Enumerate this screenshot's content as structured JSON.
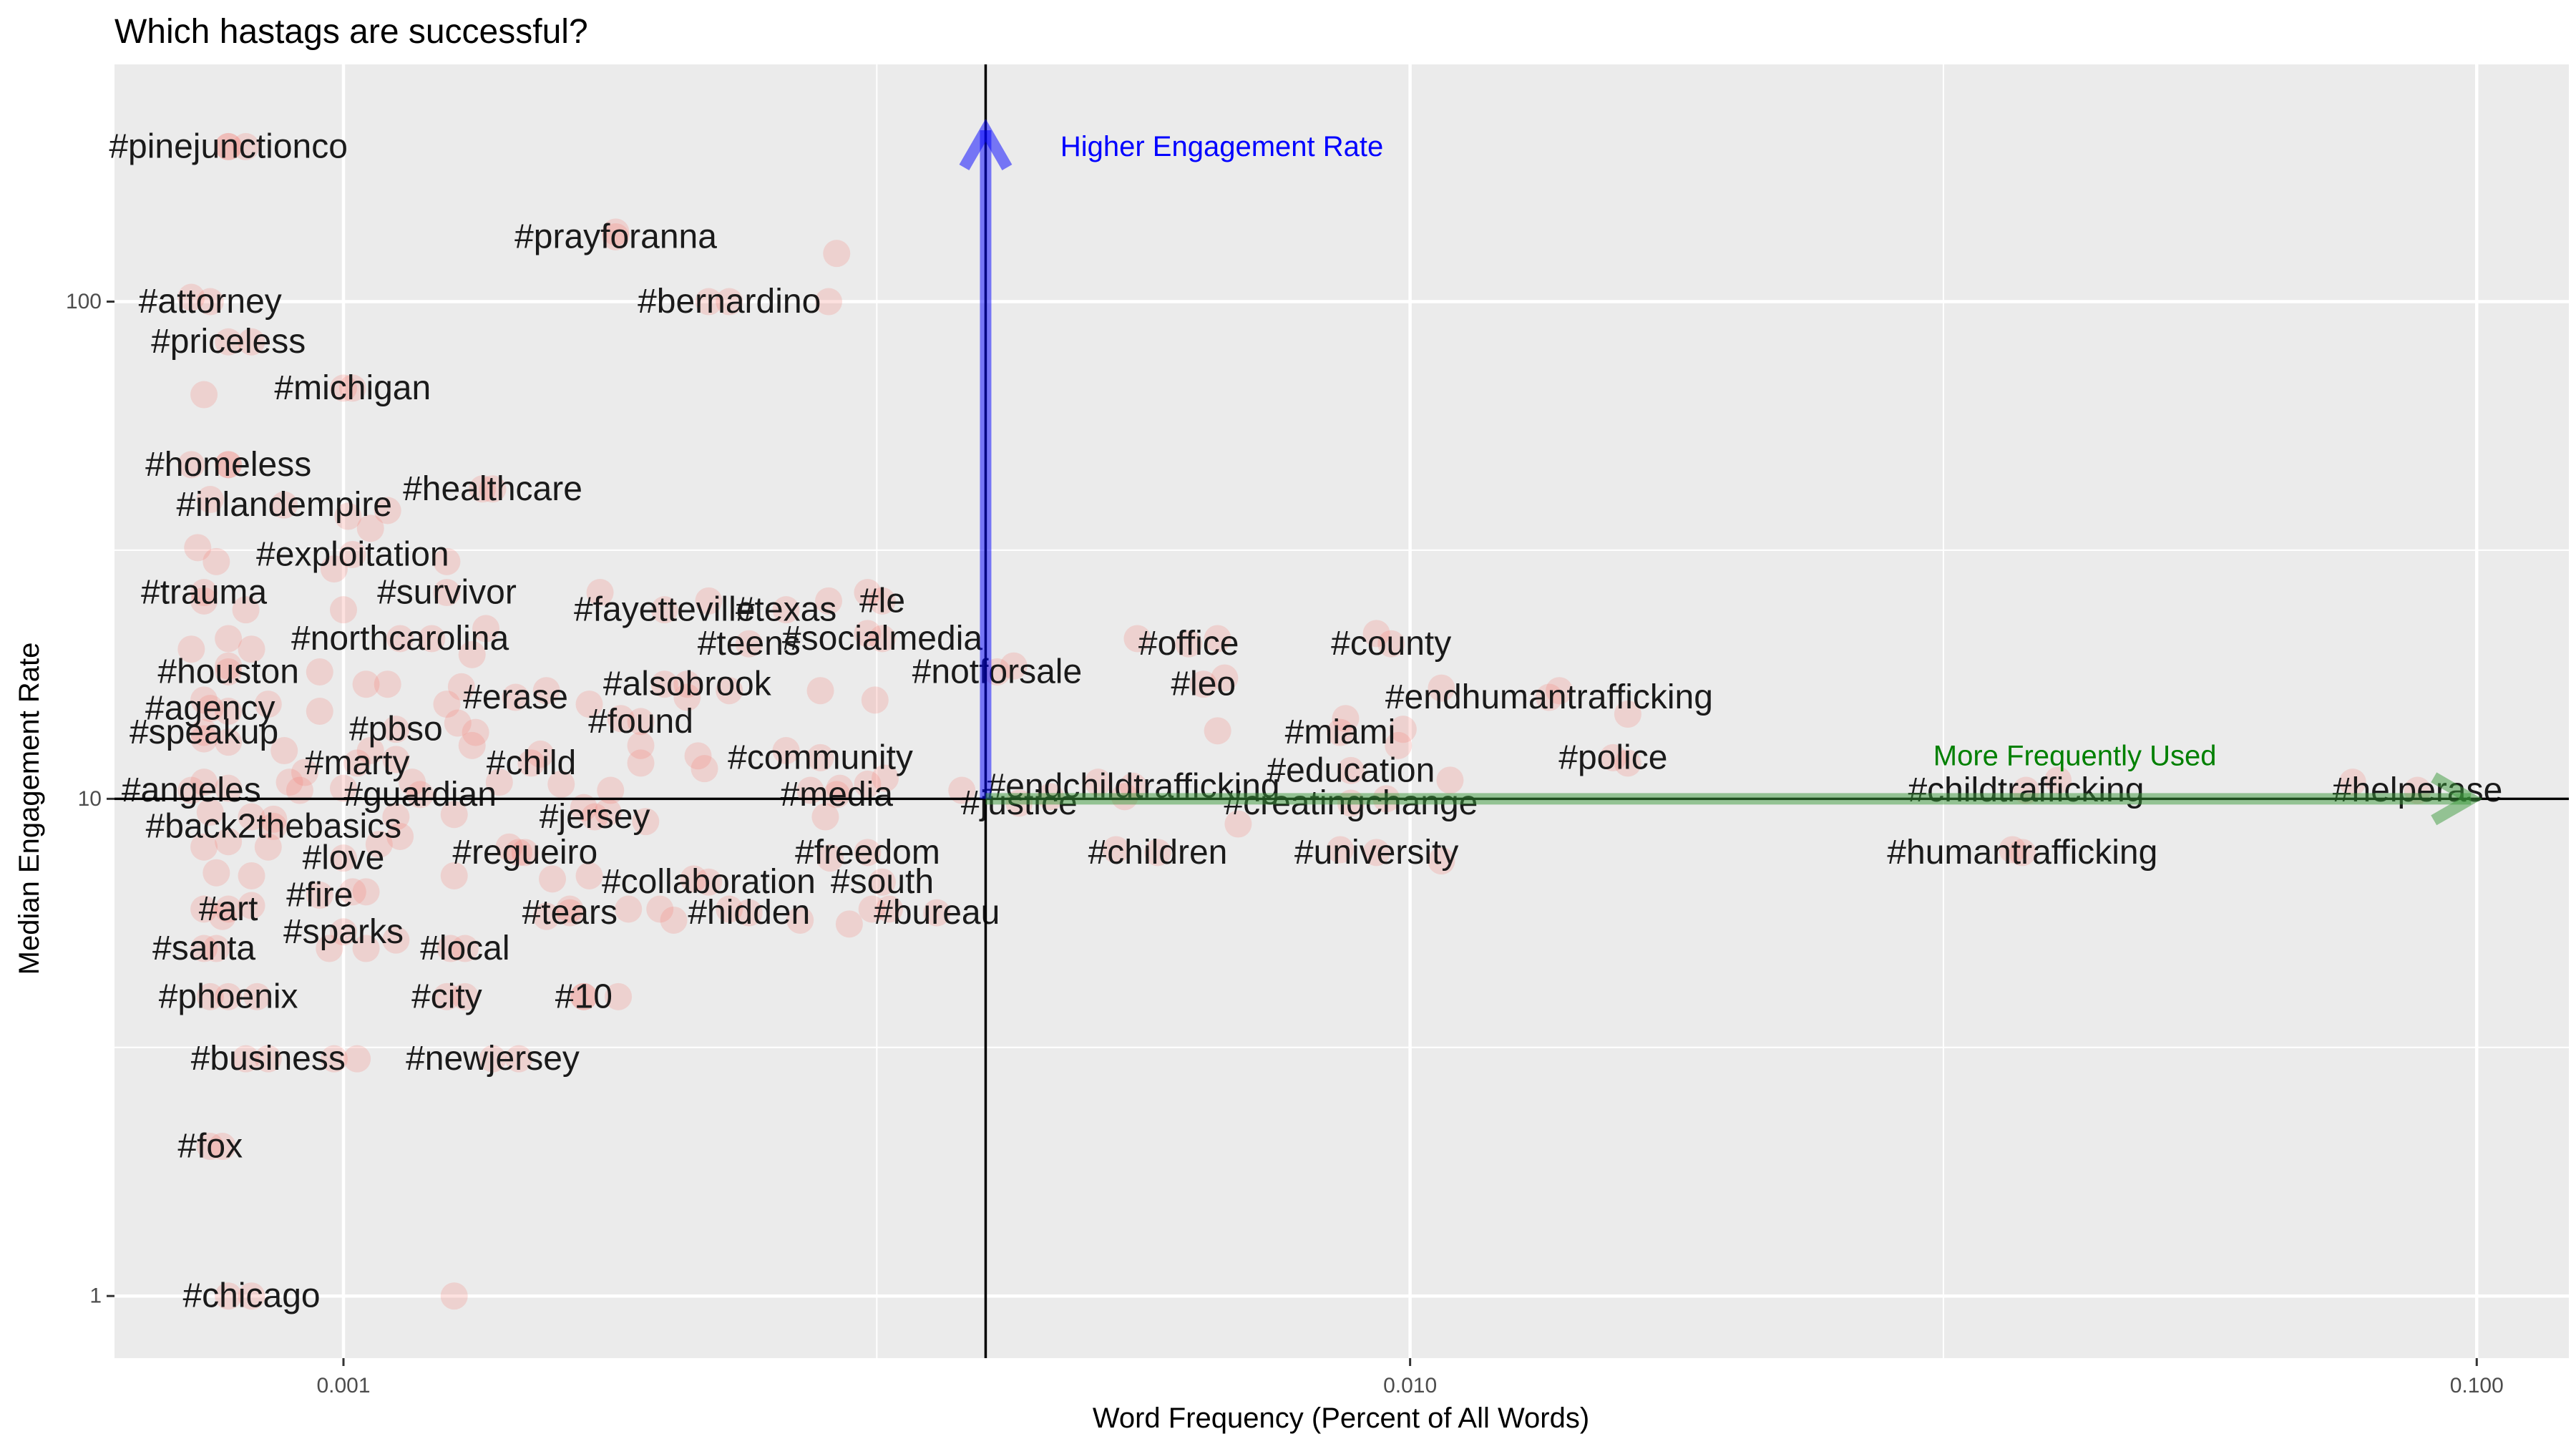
{
  "chart_data": {
    "type": "scatter",
    "title": "Which hastags are successful?",
    "xlabel": "Word Frequency (Percent of All Words)",
    "ylabel": "Median Engagement Rate",
    "x_scale": "log10",
    "y_scale": "log10",
    "xlim": [
      0.00061,
      0.122
    ],
    "ylim": [
      0.75,
      300
    ],
    "x_ticks": [
      {
        "value": 0.001,
        "label": "0.001"
      },
      {
        "value": 0.01,
        "label": "0.010"
      },
      {
        "value": 0.1,
        "label": "0.100"
      }
    ],
    "y_ticks": [
      {
        "value": 1,
        "label": "1"
      },
      {
        "value": 10,
        "label": "10"
      },
      {
        "value": 100,
        "label": "100"
      }
    ],
    "grid": true,
    "legend": "none",
    "colors": {
      "panel": "#ebebeb",
      "grid": "#ffffff",
      "point": "#f8766d",
      "up_arrow": "#0000ff",
      "right_arrow": "#3c9a3c",
      "up_text": "#0000ff",
      "right_text": "#008000"
    },
    "reference_lines": {
      "x": 0.004,
      "y": 10
    },
    "annotations": [
      {
        "name": "up-arrow-label",
        "text": "Higher Engagement Rate",
        "x": 0.0047,
        "y": 205
      },
      {
        "name": "right-arrow-label",
        "text": "More Frequently Used",
        "x": 0.042,
        "y": 12.2
      }
    ],
    "labeled_points": [
      {
        "label": "#pinejunctionco",
        "x": 0.00078,
        "y": 205
      },
      {
        "label": "#prayforanna",
        "x": 0.0018,
        "y": 135
      },
      {
        "label": "#bernardino",
        "x": 0.0023,
        "y": 100
      },
      {
        "label": "#attorney",
        "x": 0.00075,
        "y": 100
      },
      {
        "label": "#priceless",
        "x": 0.00078,
        "y": 83
      },
      {
        "label": "#michigan",
        "x": 0.00102,
        "y": 67
      },
      {
        "label": "#homeless",
        "x": 0.00078,
        "y": 47
      },
      {
        "label": "#healthcare",
        "x": 0.00138,
        "y": 42
      },
      {
        "label": "#inlandempire",
        "x": 0.00088,
        "y": 39
      },
      {
        "label": "#exploitation",
        "x": 0.00102,
        "y": 31
      },
      {
        "label": "#trauma",
        "x": 0.00074,
        "y": 26
      },
      {
        "label": "#survivor",
        "x": 0.00125,
        "y": 26
      },
      {
        "label": "#fayetteville",
        "x": 0.002,
        "y": 24
      },
      {
        "label": "#texas",
        "x": 0.0026,
        "y": 24
      },
      {
        "label": "#le",
        "x": 0.0032,
        "y": 25
      },
      {
        "label": "#northcarolina",
        "x": 0.00113,
        "y": 21
      },
      {
        "label": "#teens",
        "x": 0.0024,
        "y": 20.5
      },
      {
        "label": "#socialmedia",
        "x": 0.0032,
        "y": 21
      },
      {
        "label": "#office",
        "x": 0.0062,
        "y": 20.5
      },
      {
        "label": "#county",
        "x": 0.0096,
        "y": 20.5
      },
      {
        "label": "#houston",
        "x": 0.00078,
        "y": 18
      },
      {
        "label": "#notforsale",
        "x": 0.0041,
        "y": 18
      },
      {
        "label": "#leo",
        "x": 0.0064,
        "y": 17
      },
      {
        "label": "#alsobrook",
        "x": 0.0021,
        "y": 17
      },
      {
        "label": "#erase",
        "x": 0.00145,
        "y": 16
      },
      {
        "label": "#endhumantrafficking",
        "x": 0.0135,
        "y": 16
      },
      {
        "label": "#agency",
        "x": 0.00075,
        "y": 15.2
      },
      {
        "label": "#found",
        "x": 0.0019,
        "y": 14.3
      },
      {
        "label": "#pbso",
        "x": 0.00112,
        "y": 13.8
      },
      {
        "label": "#speakup",
        "x": 0.00074,
        "y": 13.6
      },
      {
        "label": "#miami",
        "x": 0.0086,
        "y": 13.6
      },
      {
        "label": "#community",
        "x": 0.0028,
        "y": 12.1
      },
      {
        "label": "#police",
        "x": 0.0155,
        "y": 12.1
      },
      {
        "label": "#marty",
        "x": 0.00103,
        "y": 11.8
      },
      {
        "label": "#child",
        "x": 0.0015,
        "y": 11.8
      },
      {
        "label": "#education",
        "x": 0.0088,
        "y": 11.4
      },
      {
        "label": "#endchildtrafficking",
        "x": 0.0055,
        "y": 10.6
      },
      {
        "label": "#angeles",
        "x": 0.00072,
        "y": 10.4
      },
      {
        "label": "#childtrafficking",
        "x": 0.0378,
        "y": 10.4
      },
      {
        "label": "#helperase",
        "x": 0.088,
        "y": 10.4
      },
      {
        "label": "#guardian",
        "x": 0.00118,
        "y": 10.2
      },
      {
        "label": "#media",
        "x": 0.0029,
        "y": 10.2
      },
      {
        "label": "#justice",
        "x": 0.0043,
        "y": 9.8
      },
      {
        "label": "#creatingchange",
        "x": 0.0088,
        "y": 9.8
      },
      {
        "label": "#jersey",
        "x": 0.00172,
        "y": 9.2
      },
      {
        "label": "#back2thebasics",
        "x": 0.00086,
        "y": 8.8
      },
      {
        "label": "#regueiro",
        "x": 0.00148,
        "y": 7.8
      },
      {
        "label": "#freedom",
        "x": 0.0031,
        "y": 7.8
      },
      {
        "label": "#children",
        "x": 0.0058,
        "y": 7.8
      },
      {
        "label": "#university",
        "x": 0.0093,
        "y": 7.8
      },
      {
        "label": "#humantrafficking",
        "x": 0.0375,
        "y": 7.8
      },
      {
        "label": "#love",
        "x": 0.001,
        "y": 7.6
      },
      {
        "label": "#collaboration",
        "x": 0.0022,
        "y": 6.8
      },
      {
        "label": "#south",
        "x": 0.0032,
        "y": 6.8
      },
      {
        "label": "#fire",
        "x": 0.00095,
        "y": 6.4
      },
      {
        "label": "#art",
        "x": 0.00078,
        "y": 6
      },
      {
        "label": "#tears",
        "x": 0.00163,
        "y": 5.9
      },
      {
        "label": "#hidden",
        "x": 0.0024,
        "y": 5.9
      },
      {
        "label": "#bureau",
        "x": 0.0036,
        "y": 5.9
      },
      {
        "label": "#sparks",
        "x": 0.001,
        "y": 5.4
      },
      {
        "label": "#santa",
        "x": 0.00074,
        "y": 5
      },
      {
        "label": "#local",
        "x": 0.0013,
        "y": 5
      },
      {
        "label": "#phoenix",
        "x": 0.00078,
        "y": 4
      },
      {
        "label": "#city",
        "x": 0.00125,
        "y": 4
      },
      {
        "label": "#10",
        "x": 0.00168,
        "y": 4
      },
      {
        "label": "#business",
        "x": 0.00085,
        "y": 3
      },
      {
        "label": "#newjersey",
        "x": 0.00138,
        "y": 3
      },
      {
        "label": "#fox",
        "x": 0.00075,
        "y": 2
      },
      {
        "label": "#chicago",
        "x": 0.00082,
        "y": 1
      }
    ],
    "extra_points": [
      {
        "x": 0.00078,
        "y": 205
      },
      {
        "x": 0.00081,
        "y": 205
      },
      {
        "x": 0.0018,
        "y": 138
      },
      {
        "x": 0.0029,
        "y": 125
      },
      {
        "x": 0.00072,
        "y": 102
      },
      {
        "x": 0.0022,
        "y": 100
      },
      {
        "x": 0.00285,
        "y": 100
      },
      {
        "x": 0.00082,
        "y": 83
      },
      {
        "x": 0.00074,
        "y": 65
      },
      {
        "x": 0.001,
        "y": 67
      },
      {
        "x": 0.00072,
        "y": 47
      },
      {
        "x": 0.00078,
        "y": 47
      },
      {
        "x": 0.00135,
        "y": 42
      },
      {
        "x": 0.0011,
        "y": 38
      },
      {
        "x": 0.00075,
        "y": 40
      },
      {
        "x": 0.00101,
        "y": 37
      },
      {
        "x": 0.00106,
        "y": 35
      },
      {
        "x": 0.00073,
        "y": 32
      },
      {
        "x": 0.00076,
        "y": 30
      },
      {
        "x": 0.00098,
        "y": 29
      },
      {
        "x": 0.00125,
        "y": 30
      },
      {
        "x": 0.00074,
        "y": 25
      },
      {
        "x": 0.00081,
        "y": 24
      },
      {
        "x": 0.001,
        "y": 24
      },
      {
        "x": 0.00174,
        "y": 26
      },
      {
        "x": 0.0022,
        "y": 25
      },
      {
        "x": 0.00285,
        "y": 25
      },
      {
        "x": 0.0031,
        "y": 26
      },
      {
        "x": 0.00078,
        "y": 21
      },
      {
        "x": 0.00082,
        "y": 20
      },
      {
        "x": 0.00121,
        "y": 21
      },
      {
        "x": 0.00132,
        "y": 19.5
      },
      {
        "x": 0.00136,
        "y": 22
      },
      {
        "x": 0.0031,
        "y": 21.5
      },
      {
        "x": 0.00555,
        "y": 21
      },
      {
        "x": 0.0066,
        "y": 21
      },
      {
        "x": 0.0093,
        "y": 21.5
      },
      {
        "x": 0.00072,
        "y": 20
      },
      {
        "x": 0.00078,
        "y": 18.5
      },
      {
        "x": 0.00095,
        "y": 18
      },
      {
        "x": 0.00105,
        "y": 17
      },
      {
        "x": 0.0011,
        "y": 17
      },
      {
        "x": 0.00129,
        "y": 16.8
      },
      {
        "x": 0.00155,
        "y": 16.5
      },
      {
        "x": 0.002,
        "y": 17
      },
      {
        "x": 0.0021,
        "y": 16
      },
      {
        "x": 0.0023,
        "y": 16.5
      },
      {
        "x": 0.0028,
        "y": 16.5
      },
      {
        "x": 0.00315,
        "y": 15.8
      },
      {
        "x": 0.00425,
        "y": 18.5
      },
      {
        "x": 0.0067,
        "y": 17.5
      },
      {
        "x": 0.0107,
        "y": 16.7
      },
      {
        "x": 0.0138,
        "y": 16.5
      },
      {
        "x": 0.00074,
        "y": 15.8
      },
      {
        "x": 0.00078,
        "y": 15
      },
      {
        "x": 0.00085,
        "y": 15.5
      },
      {
        "x": 0.00095,
        "y": 15
      },
      {
        "x": 0.00125,
        "y": 15.5
      },
      {
        "x": 0.00128,
        "y": 14.2
      },
      {
        "x": 0.00133,
        "y": 13.6
      },
      {
        "x": 0.0017,
        "y": 15.5
      },
      {
        "x": 0.00182,
        "y": 14.5
      },
      {
        "x": 0.0066,
        "y": 13.7
      },
      {
        "x": 0.0087,
        "y": 14.5
      },
      {
        "x": 0.00985,
        "y": 13.8
      },
      {
        "x": 0.016,
        "y": 14.8
      },
      {
        "x": 0.00074,
        "y": 13.2
      },
      {
        "x": 0.00078,
        "y": 13
      },
      {
        "x": 0.00088,
        "y": 12.5
      },
      {
        "x": 0.00092,
        "y": 11.3
      },
      {
        "x": 0.00106,
        "y": 12.5
      },
      {
        "x": 0.00112,
        "y": 12
      },
      {
        "x": 0.00132,
        "y": 12.8
      },
      {
        "x": 0.00153,
        "y": 12.3
      },
      {
        "x": 0.0019,
        "y": 12.8
      },
      {
        "x": 0.0019,
        "y": 11.8
      },
      {
        "x": 0.00215,
        "y": 12.2
      },
      {
        "x": 0.0026,
        "y": 12.5
      },
      {
        "x": 0.00218,
        "y": 11.5
      },
      {
        "x": 0.00975,
        "y": 12.8
      },
      {
        "x": 0.016,
        "y": 11.8
      },
      {
        "x": 0.0051,
        "y": 10.8
      },
      {
        "x": 0.0109,
        "y": 10.9
      },
      {
        "x": 0.00074,
        "y": 10.8
      },
      {
        "x": 0.00078,
        "y": 10.5
      },
      {
        "x": 0.00089,
        "y": 10.8
      },
      {
        "x": 0.00091,
        "y": 10.4
      },
      {
        "x": 0.001,
        "y": 10.5
      },
      {
        "x": 0.00116,
        "y": 10.8
      },
      {
        "x": 0.0014,
        "y": 10.8
      },
      {
        "x": 0.0016,
        "y": 10.7
      },
      {
        "x": 0.00178,
        "y": 10.4
      },
      {
        "x": 0.00274,
        "y": 10.4
      },
      {
        "x": 0.00292,
        "y": 10.5
      },
      {
        "x": 0.0031,
        "y": 10.7
      },
      {
        "x": 0.00322,
        "y": 11
      },
      {
        "x": 0.0038,
        "y": 10.4
      },
      {
        "x": 0.0046,
        "y": 10.1
      },
      {
        "x": 0.0054,
        "y": 10.1
      },
      {
        "x": 0.0095,
        "y": 10
      },
      {
        "x": 0.0405,
        "y": 10.9
      },
      {
        "x": 0.0765,
        "y": 10.8
      },
      {
        "x": 0.00075,
        "y": 9.4
      },
      {
        "x": 0.00082,
        "y": 9.2
      },
      {
        "x": 0.00086,
        "y": 9.1
      },
      {
        "x": 0.00112,
        "y": 9.2
      },
      {
        "x": 0.00127,
        "y": 9.3
      },
      {
        "x": 0.00168,
        "y": 9.6
      },
      {
        "x": 0.00177,
        "y": 9.4
      },
      {
        "x": 0.00192,
        "y": 9
      },
      {
        "x": 0.00283,
        "y": 9.2
      },
      {
        "x": 0.0069,
        "y": 8.9
      },
      {
        "x": 0.00074,
        "y": 8
      },
      {
        "x": 0.00078,
        "y": 8.2
      },
      {
        "x": 0.00085,
        "y": 8
      },
      {
        "x": 0.00108,
        "y": 8.1
      },
      {
        "x": 0.00113,
        "y": 8.4
      },
      {
        "x": 0.00143,
        "y": 8
      },
      {
        "x": 0.00146,
        "y": 7.8
      },
      {
        "x": 0.00286,
        "y": 7.6
      },
      {
        "x": 0.0053,
        "y": 7.9
      },
      {
        "x": 0.0086,
        "y": 7.9
      },
      {
        "x": 0.0107,
        "y": 7.5
      },
      {
        "x": 0.0367,
        "y": 7.9
      },
      {
        "x": 0.00076,
        "y": 7.1
      },
      {
        "x": 0.00082,
        "y": 7
      },
      {
        "x": 0.00127,
        "y": 7
      },
      {
        "x": 0.00157,
        "y": 6.9
      },
      {
        "x": 0.0017,
        "y": 7
      },
      {
        "x": 0.00213,
        "y": 6.9
      },
      {
        "x": 0.00102,
        "y": 6.5
      },
      {
        "x": 0.00105,
        "y": 6.5
      },
      {
        "x": 0.00074,
        "y": 6
      },
      {
        "x": 0.00077,
        "y": 5.8
      },
      {
        "x": 0.00082,
        "y": 6.1
      },
      {
        "x": 0.00163,
        "y": 6
      },
      {
        "x": 0.00185,
        "y": 6
      },
      {
        "x": 0.00198,
        "y": 6
      },
      {
        "x": 0.00204,
        "y": 5.7
      },
      {
        "x": 0.0023,
        "y": 6
      },
      {
        "x": 0.00268,
        "y": 5.7
      },
      {
        "x": 0.00298,
        "y": 5.6
      },
      {
        "x": 0.00313,
        "y": 6
      },
      {
        "x": 0.00325,
        "y": 6
      },
      {
        "x": 0.00155,
        "y": 5.8
      },
      {
        "x": 0.00097,
        "y": 5
      },
      {
        "x": 0.00105,
        "y": 5
      },
      {
        "x": 0.00112,
        "y": 5.2
      },
      {
        "x": 0.00076,
        "y": 5
      },
      {
        "x": 0.00126,
        "y": 5
      },
      {
        "x": 0.00075,
        "y": 4
      },
      {
        "x": 0.00083,
        "y": 4
      },
      {
        "x": 0.0013,
        "y": 4
      },
      {
        "x": 0.00168,
        "y": 4
      },
      {
        "x": 0.00181,
        "y": 4
      },
      {
        "x": 0.00081,
        "y": 3
      },
      {
        "x": 0.00098,
        "y": 3
      },
      {
        "x": 0.00103,
        "y": 3
      },
      {
        "x": 0.00146,
        "y": 3
      },
      {
        "x": 0.00077,
        "y": 2
      },
      {
        "x": 0.00078,
        "y": 1
      },
      {
        "x": 0.00127,
        "y": 1
      }
    ]
  }
}
